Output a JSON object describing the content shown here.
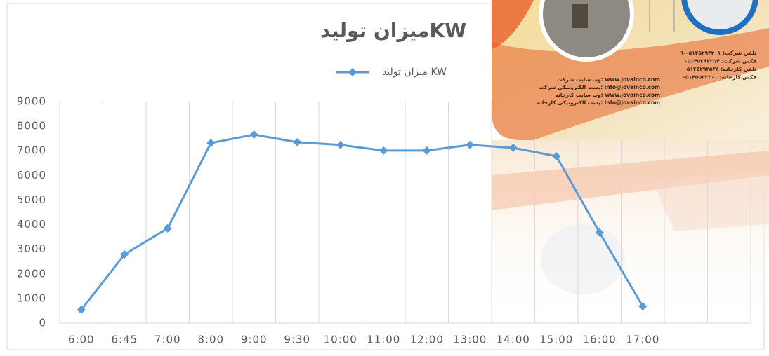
{
  "chart_data": {
    "type": "line",
    "title": "میزان تولیدKW",
    "categories": [
      "6:00",
      "6:45",
      "7:00",
      "8:00",
      "9:00",
      "9:30",
      "10:00",
      "11:00",
      "12:00",
      "13:00",
      "14:00",
      "15:00",
      "16:00",
      "17:00",
      null,
      null
    ],
    "series": [
      {
        "name": "میزان تولید KW",
        "color": "#5b9bd5",
        "values": [
          540,
          2790,
          3850,
          7320,
          7660,
          7350,
          7240,
          7010,
          7010,
          7240,
          7120,
          6780,
          3680,
          680,
          null,
          null
        ]
      }
    ],
    "ylim": [
      0,
      9000
    ],
    "yticks": [
      0,
      1000,
      2000,
      3000,
      4000,
      5000,
      6000,
      7000,
      8000,
      9000
    ],
    "grid": "x",
    "legend": "top"
  },
  "overlay": {
    "contact_lines": [
      "تلفن شرکت: ۰۵۱۴۵۲۹۳۲۰۱-۹",
      "فکس شرکت: ۰۵۱۴۵۲۹۳۲۵۴",
      "تلفن کارخانه: ۰۵۱۴۵۲۹۳۵۲۸",
      "فکس کارخانه: ۰۵۱۴۵۵۲۳۳۰۰"
    ],
    "web_lines": [
      "وب سایت شرکت: www.jovainco.com",
      "پست الکترونیکی شرکت: info@jovainco.com",
      "وب سایت کارخانه: www.jovainco.com",
      "پست الکترونیکی کارخانه: info@jovainco.com"
    ]
  }
}
